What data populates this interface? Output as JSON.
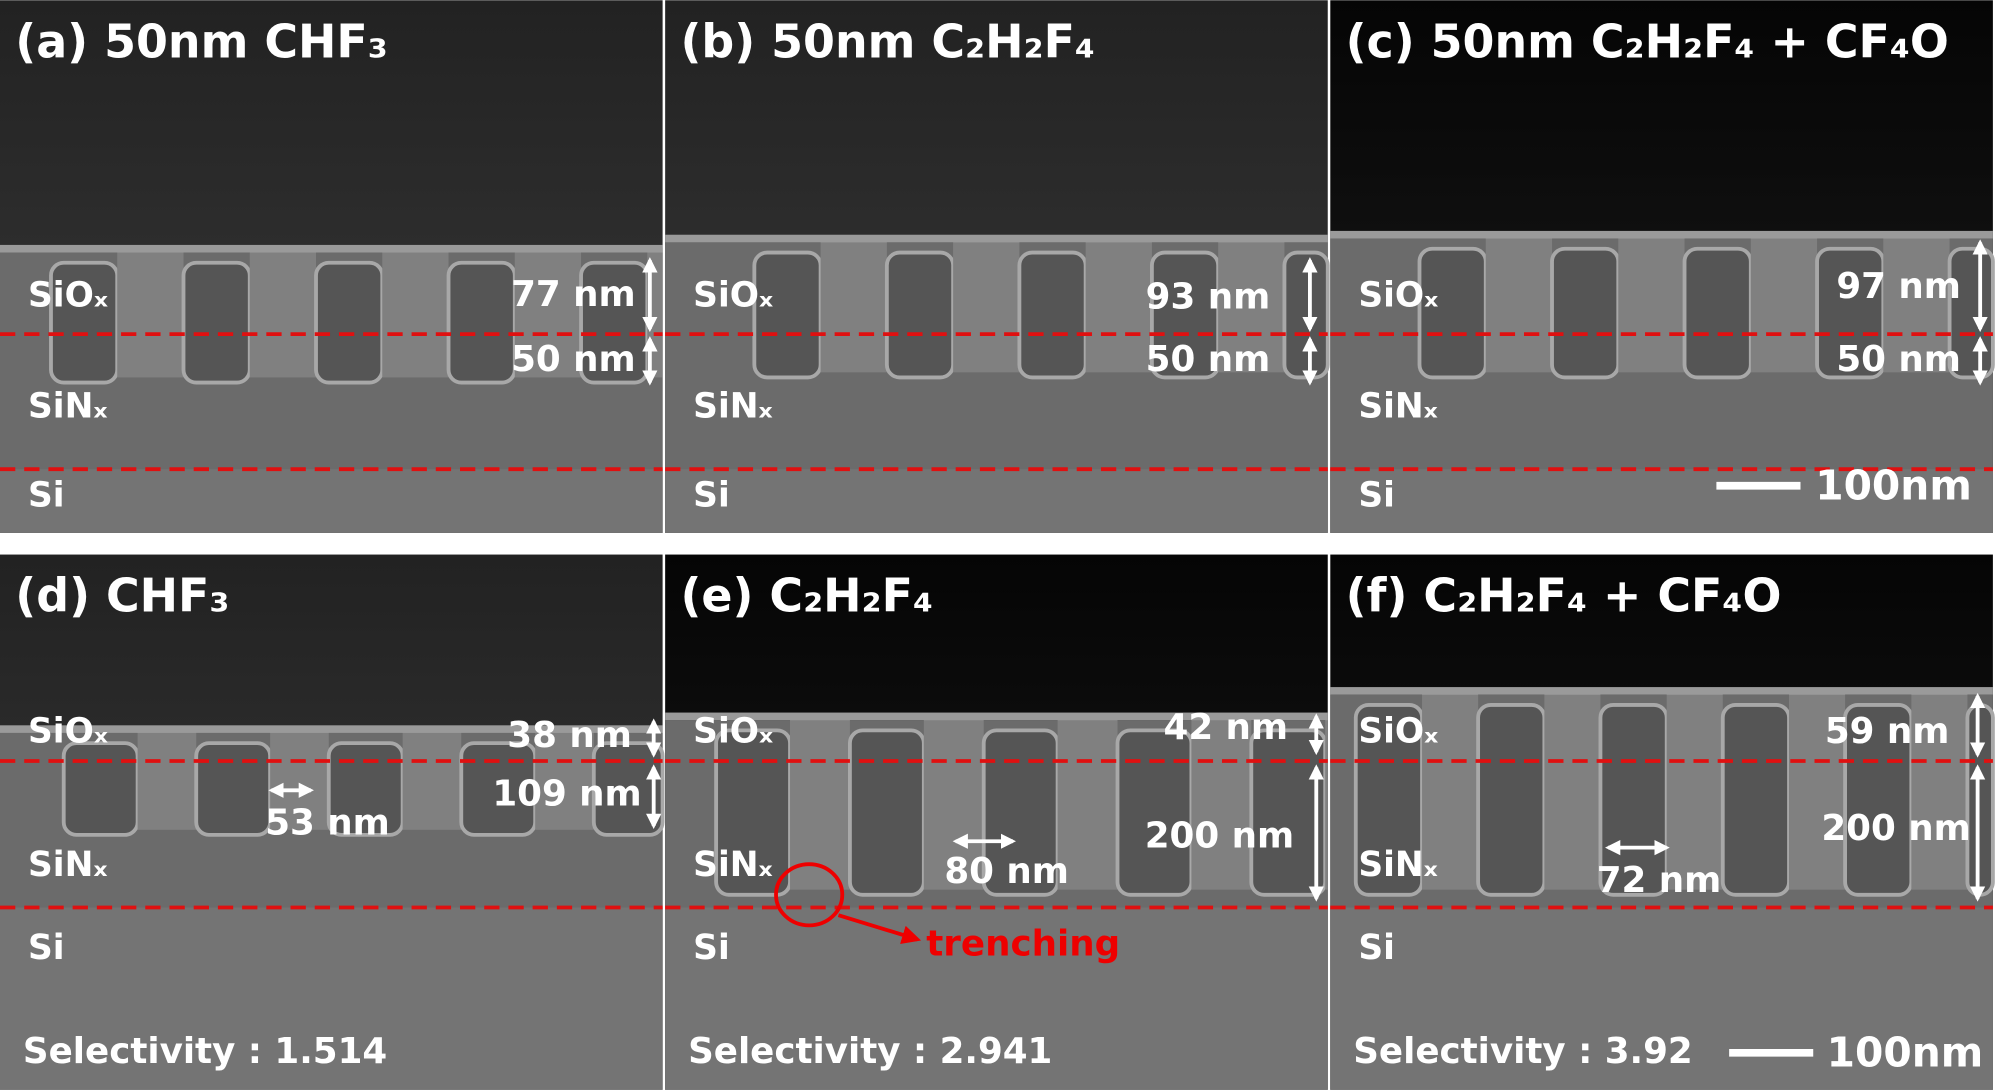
{
  "panels": [
    {
      "title": "(a) 50nm CHF₃",
      "layers": [
        "SiOₓ",
        "SiNₓ",
        "Si"
      ],
      "measurements": [
        "77 nm",
        "50 nm"
      ]
    },
    {
      "title": "(b) 50nm C₂H₂F₄",
      "layers": [
        "SiOₓ",
        "SiNₓ",
        "Si"
      ],
      "measurements": [
        "93 nm",
        "50 nm"
      ]
    },
    {
      "title": "(c) 50nm C₂H₂F₄ + CF₄O",
      "layers": [
        "SiOₓ",
        "SiNₓ",
        "Si"
      ],
      "measurements": [
        "97 nm",
        "50 nm"
      ],
      "scale_bar": "100nm"
    },
    {
      "title": "(d) CHF₃",
      "layers": [
        "SiOₓ",
        "SiNₓ",
        "Si"
      ],
      "measurements": [
        "38 nm",
        "109 nm"
      ],
      "width": "53 nm",
      "selectivity": "Selectivity : 1.514"
    },
    {
      "title": "(e) C₂H₂F₄",
      "layers": [
        "SiOₓ",
        "SiNₓ",
        "Si"
      ],
      "measurements": [
        "42 nm",
        "200 nm"
      ],
      "width": "80 nm",
      "selectivity": "Selectivity : 2.941",
      "annotation": "trenching"
    },
    {
      "title": "(f) C₂H₂F₄ + CF₄O",
      "layers": [
        "SiOₓ",
        "SiNₓ",
        "Si"
      ],
      "measurements": [
        "59 nm",
        "200 nm"
      ],
      "width": "72 nm",
      "selectivity": "Selectivity : 3.92",
      "scale_bar": "100nm"
    }
  ]
}
